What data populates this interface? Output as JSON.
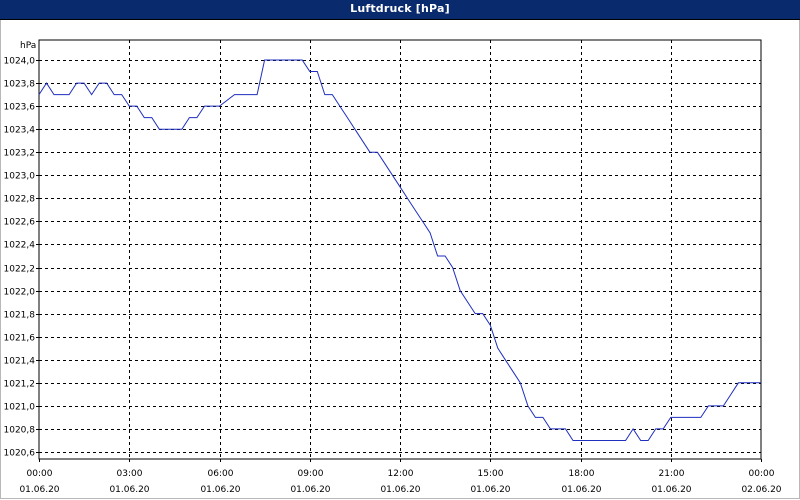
{
  "window": {
    "title": "Luftdruck [hPa]"
  },
  "colors": {
    "titlebar": "#0a2a6e",
    "line": "#1f2fbf",
    "grid": "#000000"
  },
  "chart_data": {
    "type": "line",
    "title": "Luftdruck [hPa]",
    "ylabel": "hPa",
    "xlabel": "",
    "ylim": [
      1020.5,
      1024.2
    ],
    "xlim_hours": [
      0,
      24
    ],
    "grid": true,
    "y_ticks": [
      "1020,6",
      "1020,8",
      "1021,0",
      "1021,2",
      "1021,4",
      "1021,6",
      "1021,8",
      "1022,0",
      "1022,2",
      "1022,4",
      "1022,6",
      "1022,8",
      "1023,0",
      "1023,2",
      "1023,4",
      "1023,6",
      "1023,8",
      "1024,0"
    ],
    "x_ticks": [
      {
        "time": "00:00",
        "date": "01.06.20"
      },
      {
        "time": "03:00",
        "date": "01.06.20"
      },
      {
        "time": "06:00",
        "date": "01.06.20"
      },
      {
        "time": "09:00",
        "date": "01.06.20"
      },
      {
        "time": "12:00",
        "date": "01.06.20"
      },
      {
        "time": "15:00",
        "date": "01.06.20"
      },
      {
        "time": "18:00",
        "date": "01.06.20"
      },
      {
        "time": "21:00",
        "date": "01.06.20"
      },
      {
        "time": "00:00",
        "date": "02.06.20"
      }
    ],
    "series": [
      {
        "x": [
          "00:00",
          "00:15",
          "00:30",
          "01:00",
          "01:15",
          "01:30",
          "01:45",
          "02:00",
          "02:15",
          "02:30",
          "02:45",
          "03:00",
          "03:15",
          "03:30",
          "03:45",
          "04:00",
          "04:30",
          "04:45",
          "05:00",
          "05:15",
          "05:30",
          "06:00",
          "06:30",
          "06:45",
          "07:00",
          "07:15",
          "07:30",
          "08:00",
          "08:30",
          "08:45",
          "09:00",
          "09:15",
          "09:30",
          "09:45",
          "10:00",
          "10:15",
          "10:30",
          "10:45",
          "11:00",
          "11:15",
          "11:30",
          "11:45",
          "12:00",
          "12:15",
          "12:30",
          "12:45",
          "13:00",
          "13:15",
          "13:30",
          "13:45",
          "14:00",
          "14:15",
          "14:30",
          "14:45",
          "15:00",
          "15:15",
          "15:30",
          "15:45",
          "16:00",
          "16:15",
          "16:30",
          "16:45",
          "17:00",
          "17:15",
          "17:30",
          "17:45",
          "18:00",
          "18:15",
          "18:30",
          "18:45",
          "19:00",
          "19:30",
          "19:45",
          "20:00",
          "20:15",
          "20:30",
          "20:45",
          "21:00",
          "21:15",
          "21:30",
          "22:00",
          "22:15",
          "22:30",
          "22:45",
          "23:00",
          "23:15",
          "23:30",
          "24:00"
        ],
        "values": [
          1023.7,
          1023.8,
          1023.7,
          1023.7,
          1023.8,
          1023.8,
          1023.7,
          1023.8,
          1023.8,
          1023.7,
          1023.7,
          1023.6,
          1023.6,
          1023.5,
          1023.5,
          1023.4,
          1023.4,
          1023.4,
          1023.5,
          1023.5,
          1023.6,
          1023.6,
          1023.7,
          1023.7,
          1023.7,
          1023.7,
          1024.0,
          1024.0,
          1024.0,
          1024.0,
          1023.9,
          1023.9,
          1023.7,
          1023.7,
          1023.6,
          1023.5,
          1023.4,
          1023.3,
          1023.2,
          1023.2,
          1023.1,
          1023.0,
          1022.9,
          1022.8,
          1022.7,
          1022.6,
          1022.5,
          1022.3,
          1022.3,
          1022.2,
          1022.0,
          1021.9,
          1021.8,
          1021.8,
          1021.7,
          1021.5,
          1021.4,
          1021.3,
          1021.2,
          1021.0,
          1020.9,
          1020.9,
          1020.8,
          1020.8,
          1020.8,
          1020.7,
          1020.7,
          1020.7,
          1020.7,
          1020.7,
          1020.7,
          1020.7,
          1020.8,
          1020.7,
          1020.7,
          1020.8,
          1020.8,
          1020.9,
          1020.9,
          1020.9,
          1020.9,
          1021.0,
          1021.0,
          1021.0,
          1021.1,
          1021.2,
          1021.2,
          1021.2
        ]
      }
    ]
  }
}
